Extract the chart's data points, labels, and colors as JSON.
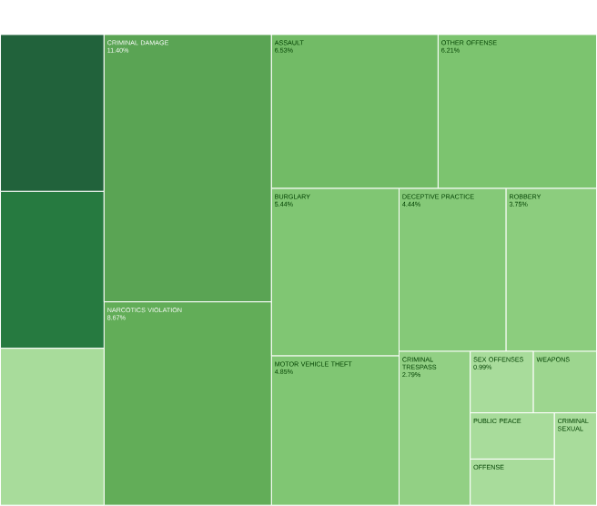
{
  "chart_data": {
    "type": "other",
    "categories": [
      null,
      null,
      "CRIMINAL DAMAGE",
      "NARCOTICS VIOLATION",
      "ASSAULT",
      "OTHER OFFENSE",
      "BURGLARY",
      "MOTOR VEHICLE THEFT",
      "DECEPTIVE PRACTICE",
      "ROBBERY",
      "CRIMINAL TRESPASS",
      "SEX OFFENSES",
      "WEAPONS",
      "PUBLIC PEACE",
      "OFFENSE",
      "CRIMINAL SEXUAL",
      null
    ],
    "values": [
      null,
      null,
      11.4,
      8.67,
      6.53,
      6.21,
      5.44,
      4.85,
      4.44,
      3.75,
      2.79,
      0.99,
      null,
      null,
      null,
      null,
      null
    ],
    "value_labels": [
      null,
      null,
      "11.40%",
      "8.67%",
      "6.53%",
      "6.21%",
      "5.44%",
      "4.85%",
      "4.44%",
      "3.75%",
      "2.79%",
      "0.99%",
      null,
      null,
      null,
      null,
      null
    ],
    "colors": [
      "#21623b",
      "#267a40",
      "#5aa454",
      "#62ad58",
      "#72bb66",
      "#7cc46f",
      "#80c673",
      "#80c673",
      "#85c978",
      "#8ccd7e",
      "#92d084",
      "#a8dc9b",
      "#9dd68f",
      "#a8dc9b",
      "#a8dc9b",
      "#a8dc9b",
      "#a8dc9b"
    ]
  }
}
